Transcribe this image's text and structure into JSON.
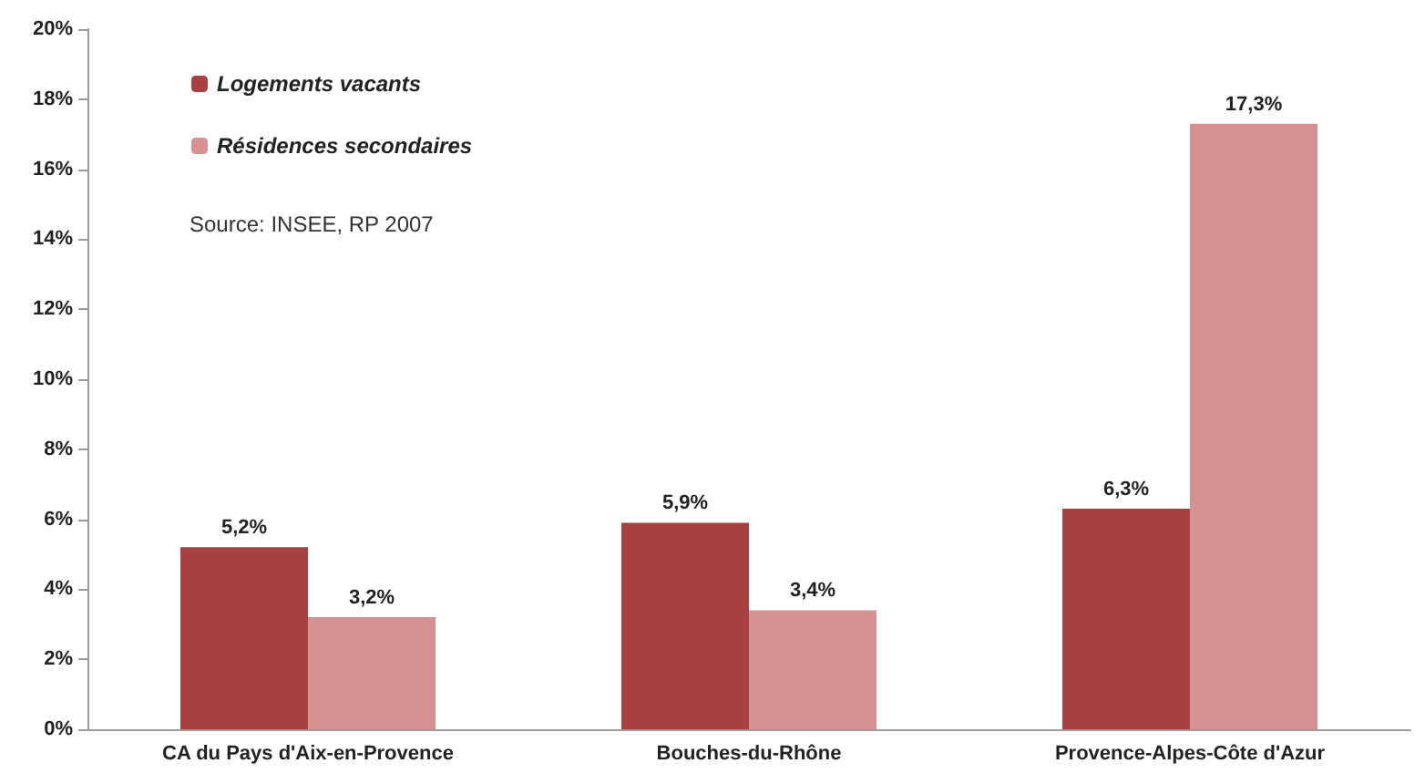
{
  "chart_data": {
    "type": "bar",
    "categories": [
      "CA du Pays d'Aix-en-Provence",
      "Bouches-du-Rhône",
      "Provence-Alpes-Côte d'Azur"
    ],
    "series": [
      {
        "name": "Logements vacants",
        "color": "#a8403f",
        "values": [
          5.2,
          5.9,
          6.3
        ],
        "value_labels": [
          "5,2%",
          "5,9%",
          "6,3%"
        ]
      },
      {
        "name": "Résidences secondaires",
        "color": "#d49392",
        "values": [
          3.2,
          3.4,
          17.3
        ],
        "value_labels": [
          "3,2%",
          "3,4%",
          "17,3%"
        ]
      }
    ],
    "ylim": [
      0,
      20
    ],
    "yticks": [
      {
        "value": 0,
        "label": "0%"
      },
      {
        "value": 2,
        "label": "2%"
      },
      {
        "value": 4,
        "label": "4%"
      },
      {
        "value": 6,
        "label": "6%"
      },
      {
        "value": 8,
        "label": "8%"
      },
      {
        "value": 10,
        "label": "10%"
      },
      {
        "value": 12,
        "label": "12%"
      },
      {
        "value": 14,
        "label": "14%"
      },
      {
        "value": 16,
        "label": "16%"
      },
      {
        "value": 18,
        "label": "18%"
      },
      {
        "value": 20,
        "label": "20%"
      }
    ],
    "grid": false,
    "legend": "top left",
    "annotations": [
      "Source: INSEE, RP 2007"
    ]
  }
}
